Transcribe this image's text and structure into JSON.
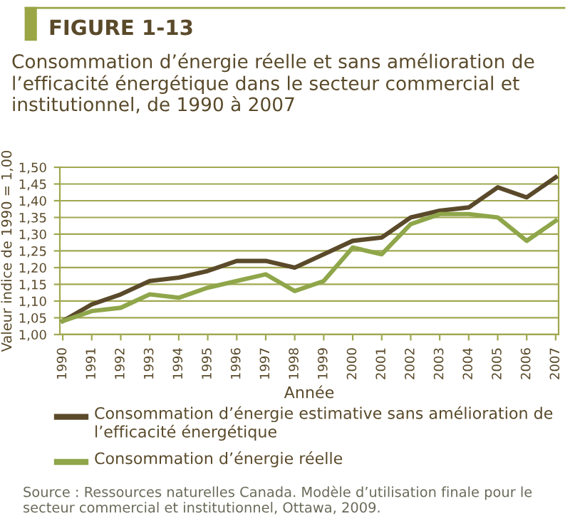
{
  "chart_data": {
    "type": "line",
    "title": "Consommation d’énergie réelle et sans amélioration de l’efficacité énergétique dans le secteur commercial et institutionnel, de 1990 à 2007",
    "xlabel": "Année",
    "ylabel": "Valeur indice de 1990 = 1,00",
    "categories": [
      "1990",
      "1991",
      "1992",
      "1993",
      "1994",
      "1995",
      "1996",
      "1997",
      "1998",
      "1999",
      "2000",
      "2001",
      "2002",
      "2003",
      "2004",
      "2005",
      "2006",
      "2007"
    ],
    "series": [
      {
        "name": "Consommation d’énergie estimative sans amélioration de l’efficacité énergétique",
        "color": "#5a4a2a",
        "values": [
          1.04,
          1.09,
          1.12,
          1.16,
          1.17,
          1.19,
          1.22,
          1.22,
          1.2,
          1.24,
          1.28,
          1.29,
          1.35,
          1.37,
          1.38,
          1.44,
          1.41,
          1.47
        ]
      },
      {
        "name": "Consommation d’énergie réelle",
        "color": "#8fa64a",
        "values": [
          1.04,
          1.07,
          1.08,
          1.12,
          1.11,
          1.14,
          1.16,
          1.18,
          1.13,
          1.16,
          1.26,
          1.24,
          1.33,
          1.36,
          1.36,
          1.35,
          1.28,
          1.34
        ]
      }
    ],
    "ylim": [
      1.0,
      1.5
    ],
    "yticks": [
      {
        "value": 1.0,
        "label": "1,00"
      },
      {
        "value": 1.05,
        "label": "1,05"
      },
      {
        "value": 1.1,
        "label": "1,10"
      },
      {
        "value": 1.15,
        "label": "1,15"
      },
      {
        "value": 1.2,
        "label": "1,20"
      },
      {
        "value": 1.25,
        "label": "1,25"
      },
      {
        "value": 1.3,
        "label": "1,30"
      },
      {
        "value": 1.35,
        "label": "1,35"
      },
      {
        "value": 1.4,
        "label": "1,40"
      },
      {
        "value": 1.45,
        "label": "1,45"
      },
      {
        "value": 1.5,
        "label": "1,50"
      }
    ],
    "grid": "y",
    "legend": "bottom",
    "marker": "none",
    "line_style": "solid",
    "annotations": [
      "FIGURE 1-13",
      "Source : Ressources naturelles Canada. Modèle d’utilisation finale pour le secteur commercial et institutionnel, Ottawa, 2009."
    ]
  }
}
